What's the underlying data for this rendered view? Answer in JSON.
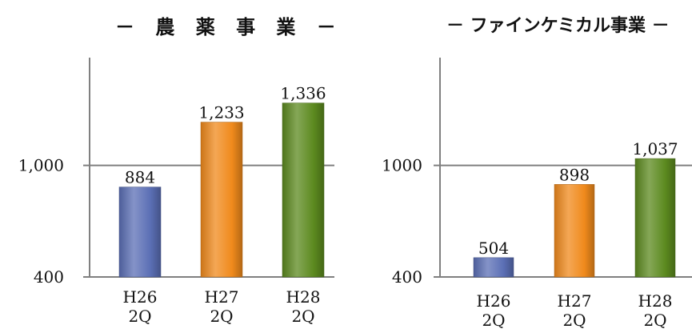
{
  "titles": {
    "agro": "－ 農 薬 事 業 －",
    "fine": "－ ファインケミカル事業 －"
  },
  "colors": {
    "axis": "#808080",
    "bar_blue": "#5b6fb5",
    "bar_orange": "#f08a1c",
    "bar_green": "#5c8a1f"
  },
  "chart_data": [
    {
      "type": "bar",
      "title": "農薬事業",
      "categories": [
        "H26 2Q",
        "H27 2Q",
        "H28 2Q"
      ],
      "values": [
        884,
        1233,
        1336
      ],
      "value_labels": [
        "884",
        "1,233",
        "1,336"
      ],
      "tick_labels": [
        "400",
        "1,000"
      ],
      "tick_values": [
        400,
        1000
      ],
      "ylim": [
        400,
        1580
      ],
      "grid": "y-at-ticks",
      "legend": "none"
    },
    {
      "type": "bar",
      "title": "ファインケミカル事業",
      "categories": [
        "H26 2Q",
        "H27 2Q",
        "H28 2Q"
      ],
      "values": [
        504,
        898,
        1037
      ],
      "value_labels": [
        "504",
        "898",
        "1,037"
      ],
      "tick_labels": [
        "400",
        "1000"
      ],
      "tick_values": [
        400,
        1000
      ],
      "ylim": [
        400,
        1580
      ],
      "grid": "y-at-ticks",
      "legend": "none"
    }
  ]
}
